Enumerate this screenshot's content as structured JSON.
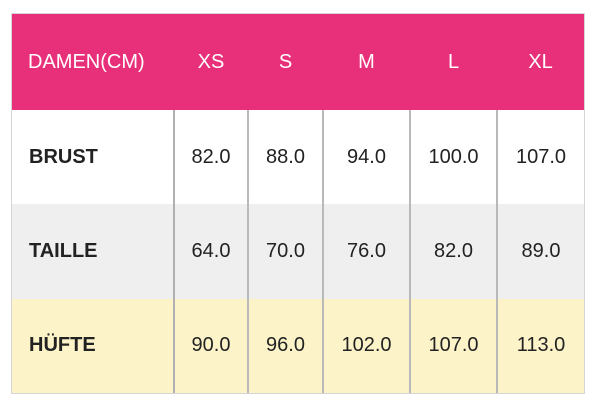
{
  "colors": {
    "header_bg": "#e8307a",
    "header_text": "#ffffff",
    "row_brust_bg": "#ffffff",
    "row_taille_bg": "#efefef",
    "row_huefte_bg": "#fdf3c9"
  },
  "table": {
    "header": [
      "DAMEN(CM)",
      "XS",
      "S",
      "M",
      "L",
      "XL"
    ],
    "rows": [
      {
        "label": "BRUST",
        "values": [
          "82.0",
          "88.0",
          "94.0",
          "100.0",
          "107.0"
        ]
      },
      {
        "label": "TAILLE",
        "values": [
          "64.0",
          "70.0",
          "76.0",
          "82.0",
          "89.0"
        ]
      },
      {
        "label": "HÜFTE",
        "values": [
          "90.0",
          "96.0",
          "102.0",
          "107.0",
          "113.0"
        ]
      }
    ]
  }
}
